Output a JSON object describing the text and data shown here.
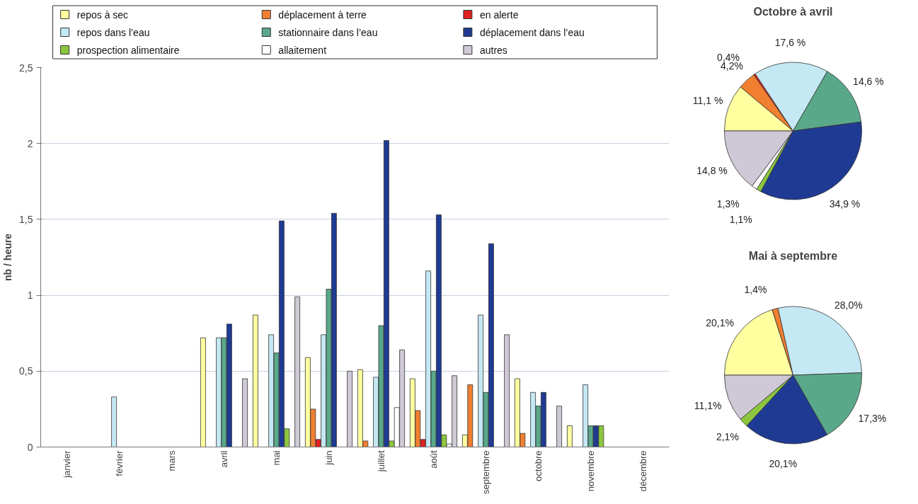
{
  "chart_data": [
    {
      "type": "bar",
      "ylabel": "nb / heure",
      "categories": [
        "janvier",
        "février",
        "mars",
        "avril",
        "mai",
        "juin",
        "juillet",
        "août",
        "septembre",
        "octobre",
        "novembre",
        "décembre"
      ],
      "series": [
        {
          "name": "repos à sec",
          "color": "#ffffa0",
          "values": [
            null,
            null,
            null,
            0.72,
            0.87,
            0.59,
            0.51,
            0.45,
            0.08,
            0.45,
            0.14,
            null
          ]
        },
        {
          "name": "déplacement à terre",
          "color": "#f07f30",
          "values": [
            null,
            null,
            null,
            null,
            null,
            0.25,
            0.04,
            0.24,
            0.41,
            0.09,
            null,
            null
          ]
        },
        {
          "name": "en alerte",
          "color": "#e02020",
          "values": [
            null,
            null,
            null,
            null,
            null,
            0.05,
            null,
            0.05,
            null,
            null,
            null,
            null
          ]
        },
        {
          "name": "repos dans l’eau",
          "color": "#c4e8f4",
          "values": [
            null,
            0.33,
            null,
            0.72,
            0.74,
            0.74,
            0.46,
            1.16,
            0.87,
            0.36,
            0.41,
            null
          ]
        },
        {
          "name": "stationnaire dans l’eau",
          "color": "#5aa88a",
          "values": [
            null,
            null,
            null,
            0.72,
            0.62,
            1.04,
            0.8,
            0.5,
            0.36,
            0.27,
            0.14,
            null
          ]
        },
        {
          "name": "déplacement dans l’eau",
          "color": "#1f3a93",
          "values": [
            null,
            null,
            null,
            0.81,
            1.49,
            1.54,
            2.02,
            1.53,
            1.34,
            0.36,
            0.14,
            null
          ]
        },
        {
          "name": "prospection alimentaire",
          "color": "#8cc63f",
          "values": [
            null,
            null,
            null,
            null,
            0.12,
            null,
            0.04,
            0.08,
            null,
            null,
            0.14,
            null
          ]
        },
        {
          "name": "allaitement",
          "color": "#ffffff",
          "values": [
            null,
            null,
            null,
            null,
            null,
            null,
            0.26,
            0.02,
            null,
            null,
            null,
            null
          ]
        },
        {
          "name": "autres",
          "color": "#cfc8d6",
          "values": [
            null,
            null,
            null,
            0.45,
            0.99,
            0.5,
            0.64,
            0.47,
            0.74,
            0.27,
            null,
            null
          ]
        }
      ],
      "ylim": [
        0,
        2.5
      ],
      "yticks": [
        0,
        {
          "value": 0.5,
          "label": "0,5"
        },
        1,
        {
          "value": 1.5,
          "label": "1,5"
        },
        2,
        {
          "value": 2.5,
          "label": "2,5"
        }
      ],
      "grid": "y",
      "legend": "top"
    },
    {
      "type": "pie",
      "title": "Octobre à avril",
      "categories": [
        null,
        null,
        null,
        null,
        null,
        null,
        null,
        null,
        null
      ],
      "values": [
        11.1,
        4.2,
        0.4,
        17.6,
        14.6,
        34.9,
        1.1,
        1.3,
        14.8
      ],
      "colors": [
        "#ffffa0",
        "#f07f30",
        "#e02020",
        "#c4e8f4",
        "#5aa88a",
        "#1f3a93",
        "#8cc63f",
        "#ffffff",
        "#cfc8d6"
      ],
      "value_labels": [
        "11,1 %",
        "4,2%",
        "0,4%",
        "17,6 %",
        "14,6 %",
        "34,9 %",
        "1,1%",
        "1,3%",
        "14,8 %"
      ]
    },
    {
      "type": "pie",
      "title": "Mai à septembre",
      "categories": [
        null,
        null,
        null,
        null,
        null,
        null,
        null,
        null,
        null
      ],
      "values": [
        20.1,
        1.4,
        0,
        28.0,
        17.3,
        20.1,
        2.1,
        0,
        11.1
      ],
      "colors": [
        "#ffffa0",
        "#f07f30",
        "#e02020",
        "#c4e8f4",
        "#5aa88a",
        "#1f3a93",
        "#8cc63f",
        "#ffffff",
        "#cfc8d6"
      ],
      "value_labels": [
        "20,1%",
        "1,4%",
        null,
        "28,0%",
        "17,3%",
        "20,1%",
        "2,1%",
        null,
        "11,1%"
      ]
    }
  ]
}
